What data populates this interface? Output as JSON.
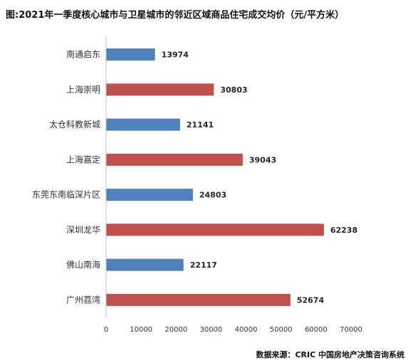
{
  "title": "图:2021年一季度核心城市与卫星城市的邻近区域商品住宅成交均价（元/平方米）",
  "source": "数据来源：CRIC 中国房地产决策咨询系统",
  "colors": {
    "satellite": "#4f81bd",
    "core": "#c0504d",
    "axis": "#bfbfbf",
    "label": "#333333",
    "value_label": "#262626"
  },
  "chart_data": {
    "type": "bar",
    "orientation": "horizontal",
    "categories": [
      "南通启东",
      "上海崇明",
      "太仓科教新城",
      "上海嘉定",
      "东莞东南临深片区",
      "深圳龙华",
      "佛山南海",
      "广州荔湾"
    ],
    "values": [
      13974,
      30803,
      21141,
      39043,
      24803,
      62238,
      22117,
      52674
    ],
    "bar_colors": [
      "#4f81bd",
      "#c0504d",
      "#4f81bd",
      "#c0504d",
      "#4f81bd",
      "#c0504d",
      "#4f81bd",
      "#c0504d"
    ],
    "xlim": [
      0,
      70000
    ],
    "xticks": [
      0,
      10000,
      20000,
      30000,
      40000,
      50000,
      60000,
      70000
    ],
    "xlabel": "",
    "ylabel": "",
    "grid": false,
    "legend": "none",
    "data_labels": true
  }
}
